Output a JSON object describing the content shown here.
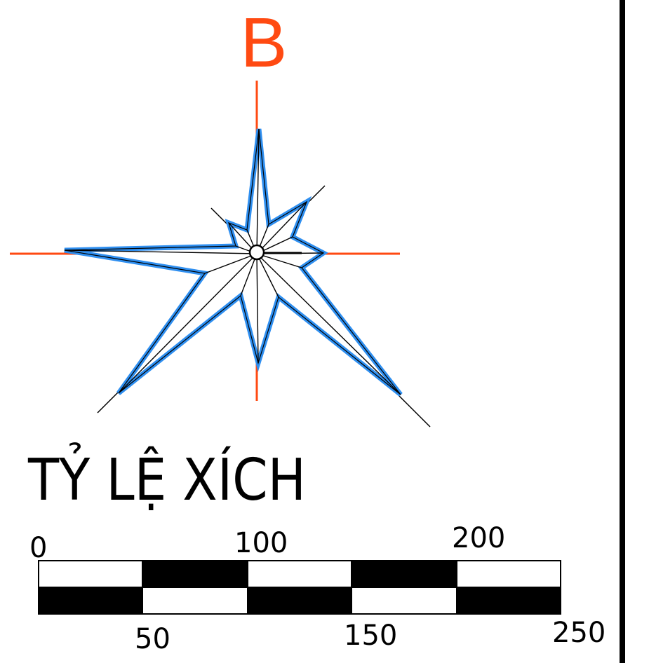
{
  "compass": {
    "north_label": "B",
    "axis_color": "#ff4a12",
    "star_outline_color": "#2f8ff0"
  },
  "scale_bar": {
    "title": "TỶ LỆ XÍCH",
    "top_labels": [
      "0",
      "100",
      "200"
    ],
    "bottom_labels": [
      "50",
      "150",
      "250"
    ]
  },
  "frame": {
    "border_color": "#000000"
  }
}
